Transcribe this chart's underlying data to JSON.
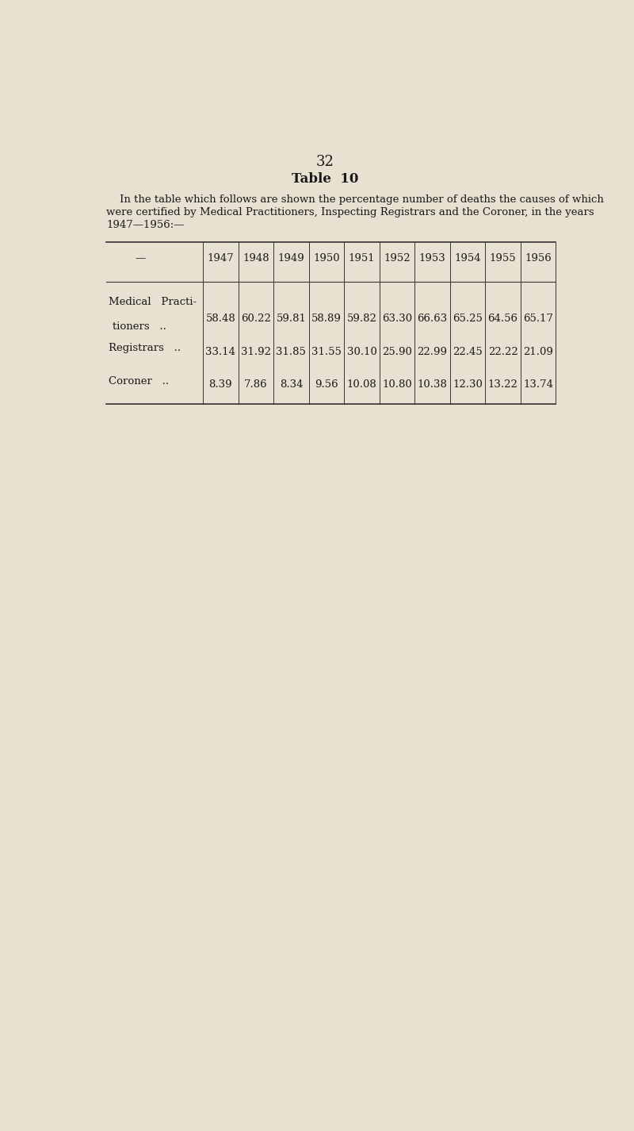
{
  "page_number": "32",
  "table_title": "Table  10",
  "description_line1": "    In the table which follows are shown the percentage number of deaths the causes of which",
  "description_line2": "were certified by Medical Practitioners, Inspecting Registrars and the Coroner, in the years",
  "description_line3": "1947—1956:—",
  "years": [
    "1947",
    "1948",
    "1949",
    "1950",
    "1951",
    "1952",
    "1953",
    "1954",
    "1955",
    "1956"
  ],
  "rows": [
    {
      "label_line1": "Medical   Practi-",
      "label_line2": "tioners",
      "label_dots": "..",
      "values": [
        58.48,
        60.22,
        59.81,
        58.89,
        59.82,
        63.3,
        66.63,
        65.25,
        64.56,
        65.17
      ]
    },
    {
      "label_line1": "Registrars",
      "label_line2": "",
      "label_dots": "..",
      "values": [
        33.14,
        31.92,
        31.85,
        31.55,
        30.1,
        25.9,
        22.99,
        22.45,
        22.22,
        21.09
      ]
    },
    {
      "label_line1": "Coroner",
      "label_line2": "",
      "label_dots": "..",
      "values": [
        8.39,
        7.86,
        8.34,
        9.56,
        10.08,
        10.8,
        10.38,
        12.3,
        13.22,
        13.74
      ]
    }
  ],
  "bg_color": "#e8e0d0",
  "text_color": "#1a1a1a",
  "line_color": "#333333",
  "font_size_title": 12,
  "font_size_body": 9.5,
  "font_size_table": 9.5,
  "font_size_page": 13
}
